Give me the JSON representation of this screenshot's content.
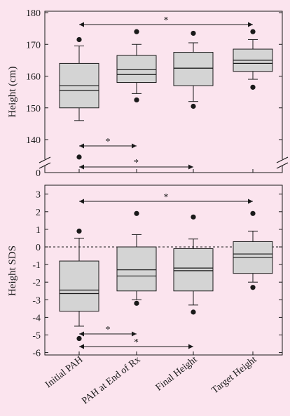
{
  "chart_data": [
    {
      "type": "box",
      "ylabel": "Height (cm)",
      "yticks": [
        "0",
        "140",
        "150",
        "160",
        "170",
        "180"
      ],
      "axis_break": true,
      "categories": [
        "Initial PAH",
        "PAH at End of Rx",
        "Final Height",
        "Target Height"
      ],
      "boxes": [
        {
          "category": "Initial PAH",
          "whisker_low": 146,
          "q1": 150,
          "median": 155.5,
          "mean": 157,
          "q3": 164,
          "whisker_high": 169.5,
          "outliers": [
            171.5,
            134.5
          ]
        },
        {
          "category": "PAH at End of Rx",
          "whisker_low": 154.5,
          "q1": 158,
          "median": 160.5,
          "mean": 162,
          "q3": 166.5,
          "whisker_high": 170,
          "outliers": [
            174,
            152.5
          ]
        },
        {
          "category": "Final Height",
          "whisker_low": 152,
          "q1": 157,
          "median": 162.5,
          "mean": 162.5,
          "q3": 167.5,
          "whisker_high": 170.5,
          "outliers": [
            173.5,
            150.5
          ]
        },
        {
          "category": "Target Height",
          "whisker_low": 159,
          "q1": 161.5,
          "median": 164,
          "mean": 165,
          "q3": 168.5,
          "whisker_high": 171.5,
          "outliers": [
            174,
            156.5
          ]
        }
      ],
      "significance": [
        {
          "from": "Initial PAH",
          "to": "Target Height",
          "label": "*"
        },
        {
          "from": "Initial PAH",
          "to": "PAH at End of Rx",
          "label": "*"
        },
        {
          "from": "Initial PAH",
          "to": "Final Height",
          "label": "*"
        }
      ]
    },
    {
      "type": "box",
      "ylabel": "Height SDS",
      "ylim": [
        -6,
        3
      ],
      "yticks": [
        -6,
        -5,
        -4,
        -3,
        -2,
        -1,
        0,
        1,
        2,
        3
      ],
      "reference_line": 0,
      "categories": [
        "Initial PAH",
        "PAH at End of Rx",
        "Final Height",
        "Target Height"
      ],
      "boxes": [
        {
          "category": "Initial PAH",
          "whisker_low": -4.5,
          "q1": -3.65,
          "median": -2.65,
          "mean": -2.45,
          "q3": -0.8,
          "whisker_high": 0.5,
          "outliers": [
            0.9,
            -5.2
          ]
        },
        {
          "category": "PAH at End of Rx",
          "whisker_low": -3.0,
          "q1": -2.5,
          "median": -1.65,
          "mean": -1.3,
          "q3": 0,
          "whisker_high": 0.7,
          "outliers": [
            1.9,
            -3.2
          ]
        },
        {
          "category": "Final Height",
          "whisker_low": -3.3,
          "q1": -2.5,
          "median": -1.35,
          "mean": -1.2,
          "q3": -0.1,
          "whisker_high": 0.45,
          "outliers": [
            1.7,
            -3.7
          ]
        },
        {
          "category": "Target Height",
          "whisker_low": -2.0,
          "q1": -1.5,
          "median": -0.6,
          "mean": -0.4,
          "q3": 0.3,
          "whisker_high": 0.9,
          "outliers": [
            1.9,
            -2.3
          ]
        }
      ],
      "significance": [
        {
          "from": "Initial PAH",
          "to": "Target Height",
          "label": "*"
        },
        {
          "from": "Initial PAH",
          "to": "PAH at End of Rx",
          "label": "*"
        },
        {
          "from": "Initial PAH",
          "to": "Final Height",
          "label": "*"
        }
      ]
    }
  ],
  "colors": {
    "background": "#fbe4ee",
    "box_fill": "#d4d4d4",
    "stroke": "#1a1a1a"
  }
}
